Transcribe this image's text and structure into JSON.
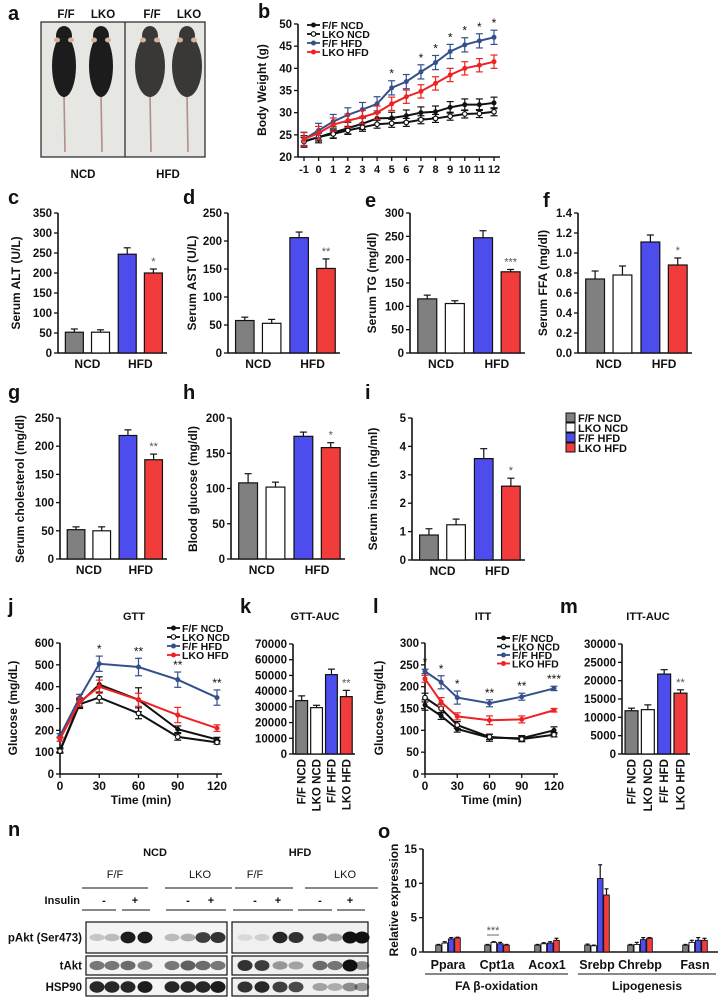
{
  "legend": {
    "items": [
      {
        "label": "F/F  NCD",
        "color": "#808080"
      },
      {
        "label": "LKO  NCD",
        "color": "#ffffff"
      },
      {
        "label": "F/F  HFD",
        "color": "#4d4dee"
      },
      {
        "label": "LKO  HFD",
        "color": "#f23c3c"
      }
    ]
  },
  "panel_a": {
    "label": "a",
    "genotypes": [
      "F/F",
      "LKO",
      "F/F",
      "LKO"
    ],
    "diets": [
      "NCD",
      "HFD"
    ]
  },
  "panel_n": {
    "label": "n",
    "diets": [
      "NCD",
      "HFD"
    ],
    "genotypes": [
      "F/F",
      "LKO",
      "F/F",
      "LKO"
    ],
    "insulin_label": "Insulin",
    "insulin_states": [
      "-",
      "+",
      "-",
      "+",
      "-",
      "+",
      "-",
      "+"
    ],
    "rows": [
      {
        "label": "pAkt (Ser473)",
        "bands": [
          0.2,
          0.25,
          0.95,
          0.95,
          0.25,
          0.3,
          0.8,
          0.85,
          0.1,
          0.15,
          0.9,
          0.85,
          0.4,
          0.35,
          1,
          1
        ]
      },
      {
        "label": "tAkt",
        "bands": [
          0.55,
          0.55,
          0.6,
          0.5,
          0.55,
          0.65,
          0.6,
          0.55,
          0.85,
          0.8,
          0.4,
          0.35,
          0.6,
          0.55,
          1,
          0.45
        ]
      },
      {
        "label": "HSP90",
        "bands": [
          0.9,
          0.9,
          0.9,
          0.95,
          0.9,
          0.9,
          0.9,
          0.95,
          0.85,
          0.9,
          0.8,
          0.75,
          0.35,
          0.3,
          0.45,
          0.4
        ]
      }
    ]
  },
  "line_colors": {
    "F/F NCD": "#111111",
    "LKO NCD": "#111111",
    "F/F HFD": "#34508c",
    "LKO HFD": "#ee2222"
  },
  "chart_data": [
    {
      "id": "b",
      "label": "b",
      "type": "line",
      "title": "",
      "xlabel": "",
      "ylabel": "Body Weight (g)",
      "x": [
        -1,
        0,
        1,
        2,
        3,
        4,
        5,
        6,
        7,
        8,
        9,
        10,
        11,
        12
      ],
      "ylim": [
        20,
        50
      ],
      "ystep": 5,
      "series": [
        {
          "name": "F/F NCD",
          "values": [
            23.5,
            24.5,
            25.5,
            26.5,
            27.5,
            28.7,
            28.8,
            29.3,
            30,
            30.2,
            31.2,
            31.8,
            31.8,
            32.2
          ],
          "sem": 1.3,
          "marker": "filled"
        },
        {
          "name": "LKO NCD",
          "values": [
            23.5,
            24.5,
            25.2,
            26,
            26.7,
            27.4,
            27.6,
            27.8,
            28.4,
            28.7,
            29.2,
            29.7,
            29.8,
            30.2
          ],
          "sem": 0.9,
          "marker": "open"
        },
        {
          "name": "F/F HFD",
          "values": [
            24,
            26,
            28,
            29.5,
            30.7,
            32,
            35.6,
            37,
            39.2,
            41.3,
            43.8,
            45.3,
            46.2,
            47
          ],
          "sem": 1.6,
          "marker": "filled"
        },
        {
          "name": "LKO HFD",
          "values": [
            24,
            25.4,
            27.3,
            28.2,
            29,
            30,
            32,
            33.6,
            34.8,
            36.6,
            38.5,
            40,
            40.7,
            41.5
          ],
          "sem": 1.5,
          "marker": "filled"
        }
      ],
      "significance": [
        {
          "x": 5,
          "mark": "*"
        },
        {
          "x": 7,
          "mark": "*"
        },
        {
          "x": 8,
          "mark": "*"
        },
        {
          "x": 9,
          "mark": "*"
        },
        {
          "x": 10,
          "mark": "*"
        },
        {
          "x": 11,
          "mark": "*"
        },
        {
          "x": 12,
          "mark": "*"
        }
      ],
      "legend_placement": "top-left"
    },
    {
      "id": "c",
      "label": "c",
      "type": "bar",
      "ylabel": "Serum ALT (U/L)",
      "groups": [
        "NCD",
        "HFD"
      ],
      "categories": [
        "F/F NCD",
        "LKO NCD",
        "F/F HFD",
        "LKO HFD"
      ],
      "values": [
        52,
        52,
        247,
        200
      ],
      "errors": [
        8,
        6,
        16,
        10
      ],
      "ylim": [
        0,
        350
      ],
      "ystep": 50,
      "significance": [
        null,
        null,
        null,
        "*"
      ]
    },
    {
      "id": "d",
      "label": "d",
      "type": "bar",
      "ylabel": "Serum AST (U/L)",
      "groups": [
        "NCD",
        "HFD"
      ],
      "categories": [
        "F/F NCD",
        "LKO NCD",
        "F/F HFD",
        "LKO HFD"
      ],
      "values": [
        58,
        53,
        206,
        151
      ],
      "errors": [
        6,
        7,
        10,
        17
      ],
      "ylim": [
        0,
        250
      ],
      "ystep": 50,
      "significance": [
        null,
        null,
        null,
        "**"
      ]
    },
    {
      "id": "e",
      "label": "e",
      "type": "bar",
      "ylabel": "Serum TG (mg/dl)",
      "groups": [
        "NCD",
        "HFD"
      ],
      "categories": [
        "F/F NCD",
        "LKO NCD",
        "F/F HFD",
        "LKO HFD"
      ],
      "values": [
        116,
        106,
        247,
        174
      ],
      "errors": [
        8,
        6,
        15,
        5
      ],
      "ylim": [
        0,
        300
      ],
      "ystep": 50,
      "significance": [
        null,
        null,
        null,
        "***"
      ]
    },
    {
      "id": "f",
      "label": "f",
      "type": "bar",
      "ylabel": "Serum FFA (mg/dl)",
      "groups": [
        "NCD",
        "HFD"
      ],
      "categories": [
        "F/F NCD",
        "LKO NCD",
        "F/F HFD",
        "LKO HFD"
      ],
      "values": [
        0.74,
        0.78,
        1.11,
        0.88
      ],
      "errors": [
        0.08,
        0.09,
        0.07,
        0.07
      ],
      "ylim": [
        0,
        1.4
      ],
      "ystep": 0.2,
      "decimals": 1,
      "significance": [
        null,
        null,
        null,
        "*"
      ]
    },
    {
      "id": "g",
      "label": "g",
      "type": "bar",
      "ylabel": "Serum cholesterol (mg/dl)",
      "groups": [
        "NCD",
        "HFD"
      ],
      "categories": [
        "F/F NCD",
        "LKO NCD",
        "F/F HFD",
        "LKO HFD"
      ],
      "values": [
        52,
        50,
        219,
        176
      ],
      "errors": [
        5,
        7,
        10,
        10
      ],
      "ylim": [
        0,
        250
      ],
      "ystep": 50,
      "significance": [
        null,
        null,
        null,
        "**"
      ]
    },
    {
      "id": "h",
      "label": "h",
      "type": "bar",
      "ylabel": "Blood glucose (mg/dl)",
      "groups": [
        "NCD",
        "HFD"
      ],
      "categories": [
        "F/F NCD",
        "LKO NCD",
        "F/F HFD",
        "LKO HFD"
      ],
      "values": [
        108,
        102,
        174,
        158
      ],
      "errors": [
        13,
        7,
        6,
        7
      ],
      "ylim": [
        0,
        200
      ],
      "ystep": 50,
      "significance": [
        null,
        null,
        null,
        "*"
      ]
    },
    {
      "id": "i",
      "label": "i",
      "type": "bar",
      "ylabel": "Serum insulin (ng/ml)",
      "groups": [
        "NCD",
        "HFD"
      ],
      "categories": [
        "F/F NCD",
        "LKO NCD",
        "F/F HFD",
        "LKO HFD"
      ],
      "values": [
        0.88,
        1.24,
        3.57,
        2.6
      ],
      "errors": [
        0.22,
        0.2,
        0.35,
        0.28
      ],
      "ylim": [
        0,
        5
      ],
      "ystep": 1,
      "significance": [
        null,
        null,
        null,
        "*"
      ]
    },
    {
      "id": "j",
      "label": "j",
      "type": "line",
      "title": "GTT",
      "xlabel": "Time (min)",
      "ylabel": "Glucose  (mg/dL)",
      "x": [
        0,
        15,
        30,
        60,
        90,
        120
      ],
      "xticks": [
        0,
        30,
        60,
        90,
        120
      ],
      "ylim": [
        0,
        600
      ],
      "ystep": 100,
      "series": [
        {
          "name": "F/F NCD",
          "values": [
            110,
            325,
            410,
            340,
            205,
            158
          ],
          "errors": [
            10,
            20,
            35,
            55,
            15,
            10
          ],
          "marker": "filled"
        },
        {
          "name": "LKO NCD",
          "values": [
            105,
            320,
            350,
            278,
            170,
            145
          ],
          "errors": [
            10,
            20,
            25,
            25,
            15,
            8
          ],
          "marker": "open"
        },
        {
          "name": "F/F HFD",
          "values": [
            175,
            350,
            505,
            490,
            432,
            350
          ],
          "errors": [
            10,
            15,
            35,
            40,
            35,
            35
          ],
          "marker": "filled"
        },
        {
          "name": "LKO HFD",
          "values": [
            160,
            330,
            400,
            340,
            270,
            210
          ],
          "errors": [
            10,
            20,
            30,
            30,
            35,
            15
          ],
          "marker": "filled"
        }
      ],
      "significance": [
        {
          "x": 30,
          "mark": "*"
        },
        {
          "x": 60,
          "mark": "**"
        },
        {
          "x": 90,
          "mark": "**"
        },
        {
          "x": 120,
          "mark": "**"
        }
      ],
      "legend_placement": "top-right"
    },
    {
      "id": "k",
      "label": "k",
      "type": "bar",
      "title": "GTT-AUC",
      "categories": [
        "F/F NCD",
        "LKO NCD",
        "F/F HFD",
        "LKO HFD"
      ],
      "values": [
        34000,
        29500,
        50500,
        36500
      ],
      "errors": [
        3000,
        1500,
        3500,
        4000
      ],
      "ylim": [
        0,
        70000
      ],
      "ystep": 10000,
      "significance": [
        null,
        null,
        null,
        "**"
      ]
    },
    {
      "id": "l",
      "label": "l",
      "type": "line",
      "title": "ITT",
      "xlabel": "Time (min)",
      "ylabel": "Glucose  (mg/dL)",
      "x": [
        0,
        15,
        30,
        60,
        90,
        120
      ],
      "xticks": [
        0,
        30,
        60,
        90,
        120
      ],
      "ylim": [
        0,
        300
      ],
      "ystep": 50,
      "series": [
        {
          "name": "F/F NCD",
          "values": [
            158,
            133,
            103,
            83,
            82,
            100
          ],
          "errors": [
            12,
            8,
            7,
            8,
            6,
            8
          ],
          "marker": "filled"
        },
        {
          "name": "LKO NCD",
          "values": [
            175,
            150,
            112,
            85,
            80,
            90
          ],
          "errors": [
            10,
            10,
            8,
            6,
            6,
            5
          ],
          "marker": "open"
        },
        {
          "name": "F/F HFD",
          "values": [
            235,
            210,
            175,
            162,
            177,
            196
          ],
          "errors": [
            5,
            15,
            15,
            8,
            8,
            5
          ],
          "marker": "filled"
        },
        {
          "name": "LKO HFD",
          "values": [
            218,
            165,
            132,
            123,
            125,
            146
          ],
          "errors": [
            8,
            10,
            8,
            10,
            8,
            4
          ],
          "marker": "filled"
        }
      ],
      "significance": [
        {
          "x": 0,
          "mark": "*"
        },
        {
          "x": 15,
          "mark": "*"
        },
        {
          "x": 30,
          "mark": "*"
        },
        {
          "x": 60,
          "mark": "**"
        },
        {
          "x": 90,
          "mark": "**"
        },
        {
          "x": 120,
          "mark": "***"
        }
      ],
      "legend_placement": "top-right"
    },
    {
      "id": "m",
      "label": "m",
      "type": "bar",
      "title": "ITT-AUC",
      "categories": [
        "F/F NCD",
        "LKO NCD",
        "F/F HFD",
        "LKO HFD"
      ],
      "values": [
        11800,
        12100,
        21800,
        16600
      ],
      "errors": [
        700,
        1300,
        1200,
        900
      ],
      "ylim": [
        0,
        30000
      ],
      "ystep": 5000,
      "significance": [
        null,
        null,
        null,
        "**"
      ]
    },
    {
      "id": "o",
      "label": "o",
      "type": "bar",
      "ylabel": "Relative expression",
      "categories": [
        "Ppara",
        "Cpt1a",
        "Acox1",
        "Srebp",
        "Chrebp",
        "Fasn"
      ],
      "category_groups": [
        {
          "label": "FA β-oxidation",
          "members": [
            "Ppara",
            "Cpt1a",
            "Acox1"
          ]
        },
        {
          "label": "Lipogenesis",
          "members": [
            "Srebp",
            "Chrebp",
            "Fasn"
          ]
        }
      ],
      "ylim": [
        0,
        15
      ],
      "ystep": 5,
      "series": [
        {
          "name": "F/F NCD",
          "values": [
            1,
            1,
            1,
            1,
            1,
            1
          ],
          "errors": [
            0.1,
            0.1,
            0.1,
            0.15,
            0.1,
            0.1
          ]
        },
        {
          "name": "LKO NCD",
          "values": [
            1.3,
            1.4,
            1.2,
            0.9,
            1.1,
            1.4
          ],
          "errors": [
            0.2,
            0.1,
            0.15,
            0.1,
            0.3,
            0.3
          ]
        },
        {
          "name": "F/F HFD",
          "values": [
            1.9,
            1.2,
            1.3,
            10.7,
            1.8,
            1.7
          ],
          "errors": [
            0.2,
            0.2,
            0.2,
            2,
            0.3,
            0.4
          ]
        },
        {
          "name": "LKO HFD",
          "values": [
            2.05,
            1.0,
            1.7,
            8.3,
            2.0,
            1.7
          ],
          "errors": [
            0.1,
            0.1,
            0.3,
            0.9,
            0.1,
            0.3
          ]
        }
      ],
      "significance": [
        {
          "category": "Cpt1a",
          "between": [
            "F/F NCD",
            "LKO NCD"
          ],
          "mark": "***"
        }
      ]
    }
  ]
}
